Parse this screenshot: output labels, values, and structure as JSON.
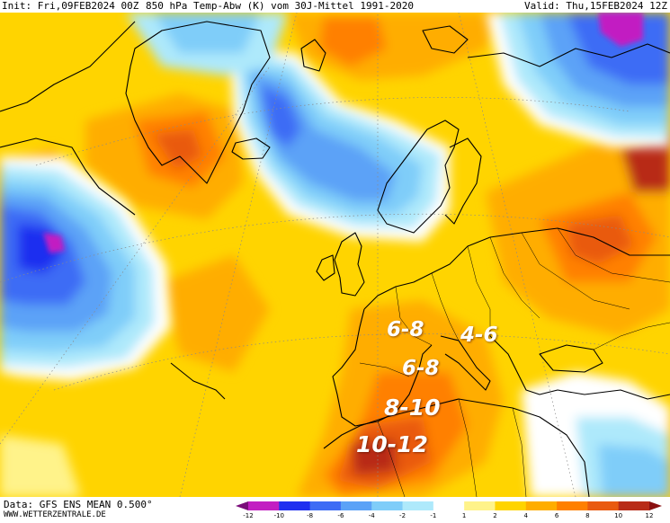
{
  "header": {
    "init": "Init: Fri,09FEB2024 00Z",
    "title": "850 hPa Temp-Abw (K) vom 30J-Mittel 1991-2020",
    "valid": "Valid: Thu,15FEB2024 12Z"
  },
  "annotations": [
    {
      "text": "6-8"
    },
    {
      "text": "4-6"
    },
    {
      "text": "6-8"
    },
    {
      "text": "8-10"
    },
    {
      "text": "10-12"
    }
  ],
  "footer": {
    "source": "Data: GFS ENS MEAN 0.500°",
    "site": "WWW.WETTERZENTRALE.DE"
  },
  "legend": {
    "ticks": [
      "-12",
      "-10",
      "-8",
      "-6",
      "-4",
      "-2",
      "-1",
      "1",
      "2",
      "4",
      "6",
      "8",
      "10",
      "12"
    ],
    "colors": [
      "#7a0d7a",
      "#c21ec2",
      "#1f2ff0",
      "#3d6cf5",
      "#5ba2f7",
      "#7fcdf9",
      "#aee9fb",
      "#ffffff",
      "#fff38a",
      "#ffd400",
      "#ffad00",
      "#ff8000",
      "#e95a10",
      "#b82c18",
      "#8a1010"
    ]
  },
  "map_colors": {
    "warm_1": "#ffd400",
    "warm_2": "#ffad00",
    "warm_3": "#ff8000",
    "warm_4": "#e95a10",
    "warm_5": "#b82c18",
    "cold_1": "#aee9fb",
    "cold_2": "#7fcdf9",
    "cold_3": "#5ba2f7",
    "cold_4": "#3d6cf5",
    "cold_5": "#1f2ff0",
    "cold_6": "#c21ec2",
    "coast": "#000000"
  }
}
